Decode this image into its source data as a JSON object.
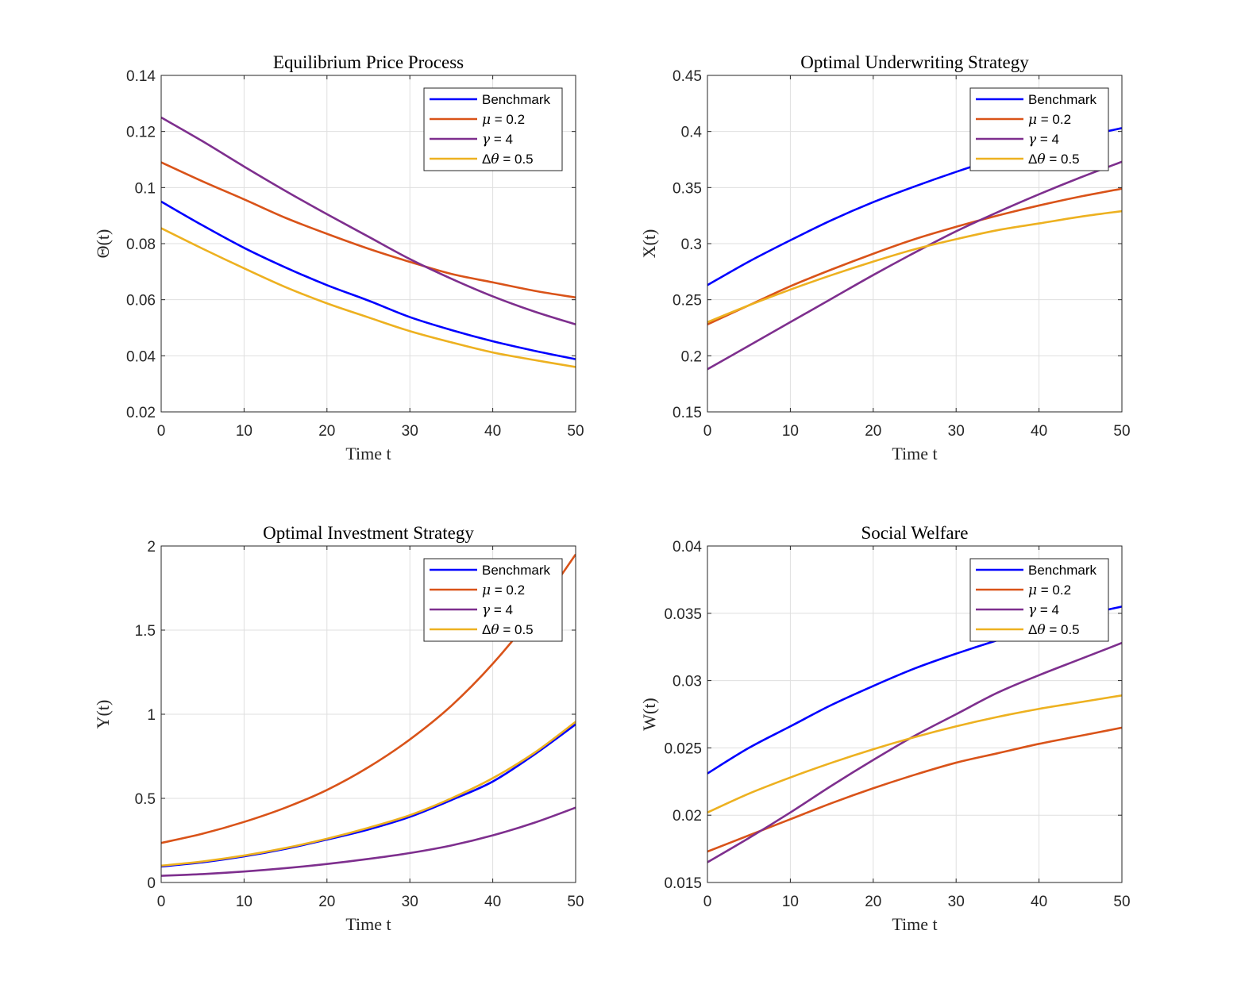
{
  "chart_data": [
    {
      "type": "line",
      "title": "Equilibrium Price Process",
      "xlabel": "Time t",
      "ylabel": "Θ(t)",
      "xlim": [
        0,
        50
      ],
      "ylim": [
        0.02,
        0.14
      ],
      "xticks": [
        "0",
        "10",
        "20",
        "30",
        "40",
        "50"
      ],
      "yticks": [
        "0.02",
        "0.04",
        "0.06",
        "0.08",
        "0.1",
        "0.12",
        "0.14"
      ],
      "grid": true,
      "legend_position": "top-right",
      "x": [
        0,
        5,
        10,
        15,
        20,
        25,
        30,
        35,
        40,
        45,
        50
      ],
      "series": [
        {
          "name": "Benchmark",
          "color": "#0000FF",
          "values": [
            0.095,
            0.0865,
            0.0785,
            0.0715,
            0.0652,
            0.0597,
            0.0538,
            0.0492,
            0.0452,
            0.0418,
            0.0388
          ]
        },
        {
          "name": "μ = 0.2",
          "color": "#D95319",
          "values": [
            0.109,
            0.1022,
            0.0958,
            0.0892,
            0.0835,
            0.0782,
            0.0735,
            0.0692,
            0.0662,
            0.0632,
            0.0608
          ]
        },
        {
          "name": "γ = 4",
          "color": "#7E2F8E",
          "values": [
            0.125,
            0.1165,
            0.1075,
            0.0988,
            0.0905,
            0.0825,
            0.0745,
            0.0675,
            0.0612,
            0.0558,
            0.0512
          ]
        },
        {
          "name": "Δθ = 0.5",
          "color": "#EDB120",
          "values": [
            0.0855,
            0.0782,
            0.0712,
            0.0645,
            0.0587,
            0.0537,
            0.0488,
            0.0448,
            0.0412,
            0.0385,
            0.036
          ]
        }
      ]
    },
    {
      "type": "line",
      "title": "Optimal Underwriting Strategy",
      "xlabel": "Time t",
      "ylabel": "X(t)",
      "xlim": [
        0,
        50
      ],
      "ylim": [
        0.15,
        0.45
      ],
      "xticks": [
        "0",
        "10",
        "20",
        "30",
        "40",
        "50"
      ],
      "yticks": [
        "0.15",
        "0.2",
        "0.25",
        "0.3",
        "0.35",
        "0.4",
        "0.45"
      ],
      "grid": true,
      "legend_position": "top-right",
      "x": [
        0,
        5,
        10,
        15,
        20,
        25,
        30,
        35,
        40,
        45,
        50
      ],
      "series": [
        {
          "name": "Benchmark",
          "color": "#0000FF",
          "values": [
            0.263,
            0.284,
            0.303,
            0.321,
            0.337,
            0.351,
            0.364,
            0.376,
            0.386,
            0.395,
            0.403
          ]
        },
        {
          "name": "μ = 0.2",
          "color": "#D95319",
          "values": [
            0.228,
            0.245,
            0.262,
            0.277,
            0.291,
            0.304,
            0.315,
            0.325,
            0.334,
            0.342,
            0.349
          ]
        },
        {
          "name": "γ = 4",
          "color": "#7E2F8E",
          "values": [
            0.188,
            0.209,
            0.23,
            0.251,
            0.272,
            0.292,
            0.311,
            0.328,
            0.344,
            0.359,
            0.373
          ]
        },
        {
          "name": "Δθ = 0.5",
          "color": "#EDB120",
          "values": [
            0.23,
            0.245,
            0.259,
            0.272,
            0.284,
            0.295,
            0.304,
            0.312,
            0.318,
            0.324,
            0.329
          ]
        }
      ]
    },
    {
      "type": "line",
      "title": "Optimal Investment Strategy",
      "xlabel": "Time t",
      "ylabel": "Y(t)",
      "xlim": [
        0,
        50
      ],
      "ylim": [
        0,
        2
      ],
      "xticks": [
        "0",
        "10",
        "20",
        "30",
        "40",
        "50"
      ],
      "yticks": [
        "0",
        "0.5",
        "1",
        "1.5",
        "2"
      ],
      "grid": true,
      "legend_position": "top-right",
      "x": [
        0,
        5,
        10,
        15,
        20,
        25,
        30,
        35,
        40,
        45,
        50
      ],
      "series": [
        {
          "name": "Benchmark",
          "color": "#0000FF",
          "values": [
            0.095,
            0.12,
            0.155,
            0.2,
            0.255,
            0.315,
            0.39,
            0.49,
            0.6,
            0.76,
            0.94
          ]
        },
        {
          "name": "μ = 0.2",
          "color": "#D95319",
          "values": [
            0.235,
            0.29,
            0.36,
            0.445,
            0.55,
            0.685,
            0.85,
            1.05,
            1.3,
            1.6,
            1.95
          ]
        },
        {
          "name": "γ = 4",
          "color": "#7E2F8E",
          "values": [
            0.04,
            0.05,
            0.065,
            0.085,
            0.11,
            0.14,
            0.175,
            0.22,
            0.28,
            0.355,
            0.445
          ]
        },
        {
          "name": "Δθ = 0.5",
          "color": "#EDB120",
          "values": [
            0.1,
            0.125,
            0.16,
            0.205,
            0.26,
            0.325,
            0.4,
            0.5,
            0.62,
            0.77,
            0.955
          ]
        }
      ]
    },
    {
      "type": "line",
      "title": "Social Welfare",
      "xlabel": "Time t",
      "ylabel": "W(t)",
      "xlim": [
        0,
        50
      ],
      "ylim": [
        0.015,
        0.04
      ],
      "xticks": [
        "0",
        "10",
        "20",
        "30",
        "40",
        "50"
      ],
      "yticks": [
        "0.015",
        "0.02",
        "0.025",
        "0.03",
        "0.035",
        "0.04"
      ],
      "grid": true,
      "legend_position": "top-right",
      "x": [
        0,
        5,
        10,
        15,
        20,
        25,
        30,
        35,
        40,
        45,
        50
      ],
      "series": [
        {
          "name": "Benchmark",
          "color": "#0000FF",
          "values": [
            0.0231,
            0.025,
            0.0266,
            0.0282,
            0.0296,
            0.0309,
            0.032,
            0.033,
            0.0339,
            0.0348,
            0.0355
          ]
        },
        {
          "name": "μ = 0.2",
          "color": "#D95319",
          "values": [
            0.0173,
            0.0185,
            0.0197,
            0.0209,
            0.022,
            0.023,
            0.0239,
            0.0246,
            0.0253,
            0.0259,
            0.0265
          ]
        },
        {
          "name": "γ = 4",
          "color": "#7E2F8E",
          "values": [
            0.0165,
            0.0183,
            0.0202,
            0.0222,
            0.0241,
            0.0259,
            0.0275,
            0.0291,
            0.0304,
            0.0316,
            0.0328
          ]
        },
        {
          "name": "Δθ = 0.5",
          "color": "#EDB120",
          "values": [
            0.0202,
            0.0216,
            0.0228,
            0.0239,
            0.0249,
            0.0258,
            0.0266,
            0.0273,
            0.0279,
            0.0284,
            0.0289
          ]
        }
      ]
    }
  ]
}
